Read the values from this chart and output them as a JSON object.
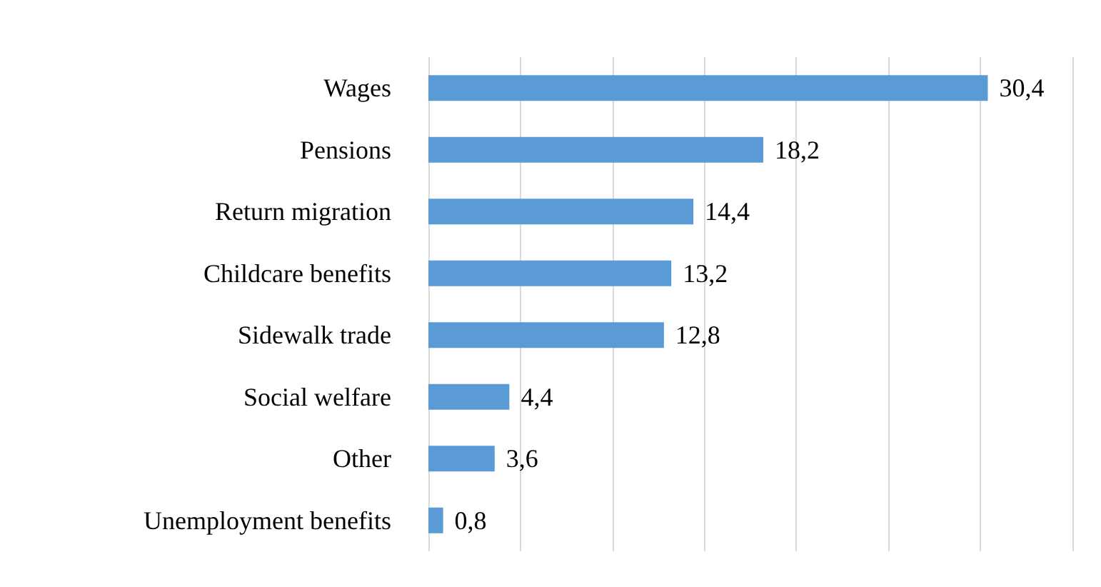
{
  "chart_data": {
    "type": "bar",
    "orientation": "horizontal",
    "categories": [
      "Wages",
      "Pensions",
      "Return migration",
      "Childcare benefits",
      "Sidewalk trade",
      "Social welfare",
      "Other",
      "Unemployment benefits"
    ],
    "values": [
      30.4,
      18.2,
      14.4,
      13.2,
      12.8,
      4.4,
      3.6,
      0.8
    ],
    "value_labels": [
      "30,4",
      "18,2",
      "14,4",
      "13,2",
      "12,8",
      "4,4",
      "3,6",
      "0,8"
    ],
    "color": "#5b9bd5",
    "xlim": [
      0,
      35
    ],
    "xticks": [
      {
        "value": 0,
        "label": null
      },
      {
        "value": 5,
        "label": null
      },
      {
        "value": 10,
        "label": null
      },
      {
        "value": 15,
        "label": null
      },
      {
        "value": 20,
        "label": null
      },
      {
        "value": 25,
        "label": null
      },
      {
        "value": 30,
        "label": null
      },
      {
        "value": 35,
        "label": null
      }
    ],
    "grid": "x",
    "tick_labels": "y"
  }
}
